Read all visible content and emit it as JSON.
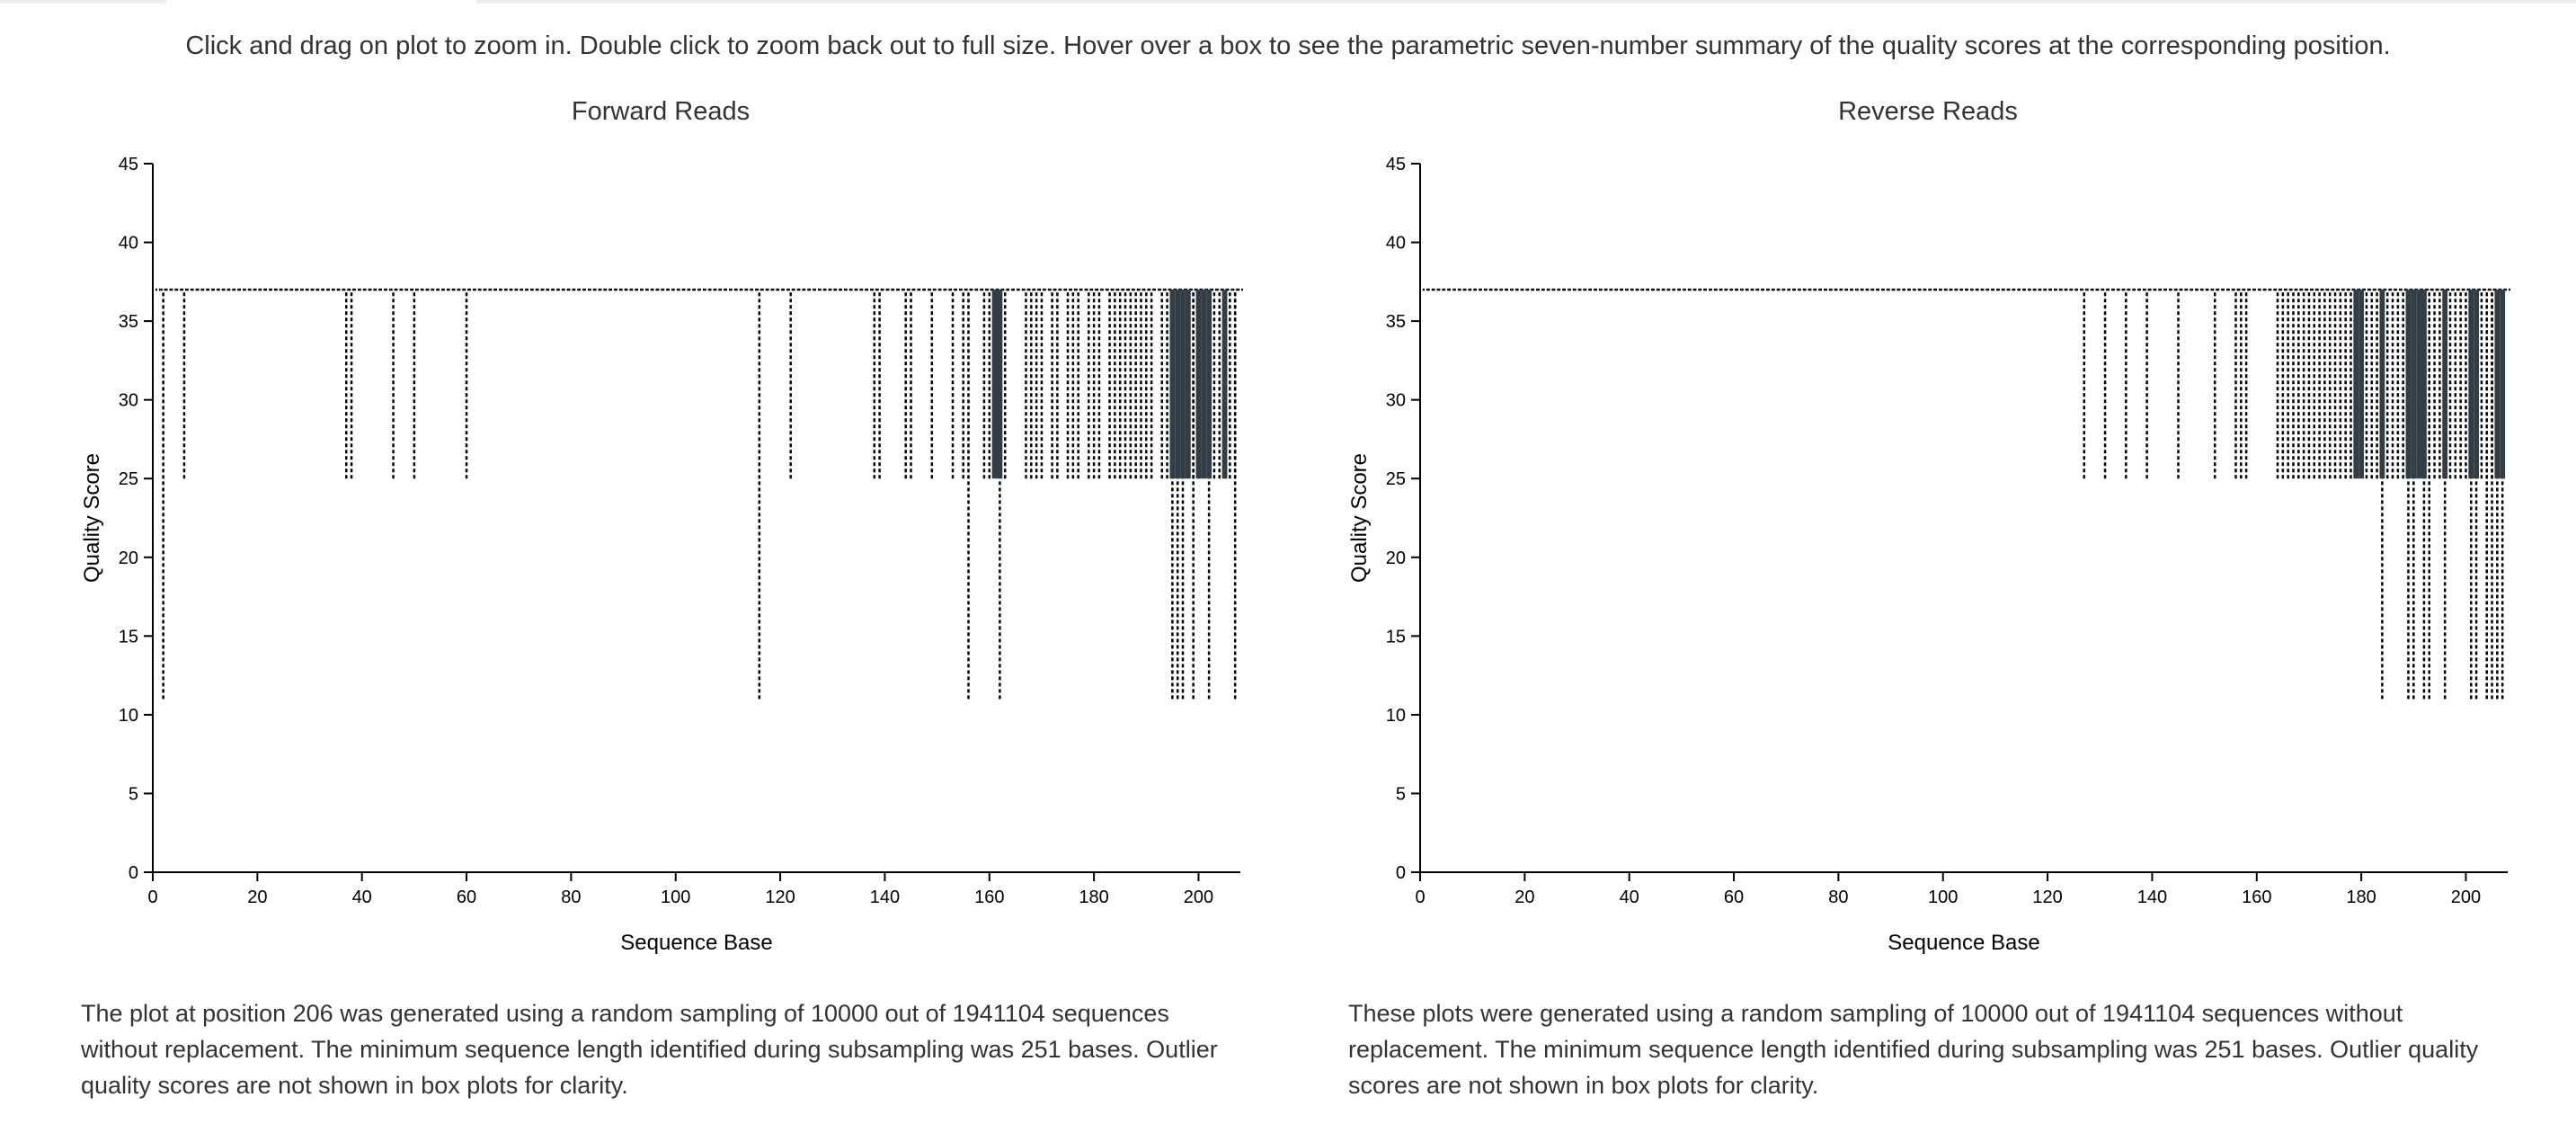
{
  "page": {
    "instructions": "Click and drag on plot to zoom in. Double click to zoom back out to full size. Hover over a box to see the parametric seven-number summary of the quality scores at the corresponding position."
  },
  "colors": {
    "whisker": "#000000",
    "box_fill": "#333d45",
    "text": "#333333"
  },
  "panels": [
    {
      "title": "Forward Reads",
      "footnote": "The plot at position 206 was generated using a random sampling of 10000 out of 1941104 sequences without replacement. The minimum sequence length identified during subsampling was 251 bases. Outlier quality scores are not shown in box plots for clarity."
    },
    {
      "title": "Reverse Reads",
      "footnote": "These plots were generated using a random sampling of 10000 out of 1941104 sequences without replacement. The minimum sequence length identified during subsampling was 251 bases. Outlier quality scores are not shown in box plots for clarity."
    }
  ],
  "chart_data": [
    {
      "type": "box",
      "title": "Forward Reads",
      "xlabel": "Sequence Base",
      "ylabel": "Quality Score",
      "xlim": [
        0,
        208
      ],
      "ylim": [
        0,
        45
      ],
      "xticks": [
        0,
        20,
        40,
        60,
        80,
        100,
        120,
        140,
        160,
        180,
        200
      ],
      "yticks": [
        0,
        5,
        10,
        15,
        20,
        25,
        30,
        35,
        40,
        45
      ],
      "grid": false,
      "median": 37,
      "q3": 37,
      "whisker_high": 37,
      "positions_with_low_whisker_25": [
        6,
        37,
        38,
        46,
        50,
        60,
        122,
        138,
        139,
        144,
        145,
        149,
        153,
        155,
        159,
        160,
        163,
        167,
        168,
        169,
        170,
        172,
        173,
        175,
        176,
        177,
        179,
        180,
        181,
        183,
        184,
        185,
        186,
        187,
        188,
        189,
        190,
        191,
        193,
        194,
        197,
        198,
        199,
        200,
        203,
        204,
        205,
        206,
        207
      ],
      "positions_with_low_whisker_11": [
        2,
        116,
        156,
        162,
        195,
        196,
        197,
        199,
        202,
        207
      ],
      "positions_with_box_25_37": [
        161,
        162,
        195,
        196,
        197,
        198,
        200,
        201,
        202,
        205
      ]
    },
    {
      "type": "box",
      "title": "Reverse Reads",
      "xlabel": "Sequence Base",
      "ylabel": "Quality Score",
      "xlim": [
        0,
        208
      ],
      "ylim": [
        0,
        45
      ],
      "xticks": [
        0,
        20,
        40,
        60,
        80,
        100,
        120,
        140,
        160,
        180,
        200
      ],
      "yticks": [
        0,
        5,
        10,
        15,
        20,
        25,
        30,
        35,
        40,
        45
      ],
      "grid": false,
      "median": 37,
      "q3": 37,
      "whisker_high": 37,
      "positions_with_low_whisker_25": [
        127,
        131,
        135,
        139,
        145,
        152,
        156,
        157,
        158,
        164,
        165,
        166,
        167,
        168,
        169,
        170,
        171,
        172,
        173,
        174,
        175,
        176,
        177,
        178,
        181,
        182,
        183,
        185,
        186,
        187,
        188,
        193,
        194,
        195,
        197,
        198,
        199,
        200,
        203,
        204,
        205
      ],
      "positions_with_low_whisker_11": [
        184,
        189,
        190,
        192,
        193,
        196,
        201,
        202,
        204,
        205,
        206,
        207
      ],
      "positions_with_box_25_37": [
        179,
        180,
        184,
        189,
        190,
        191,
        192,
        196,
        201,
        202,
        206,
        207
      ]
    }
  ]
}
